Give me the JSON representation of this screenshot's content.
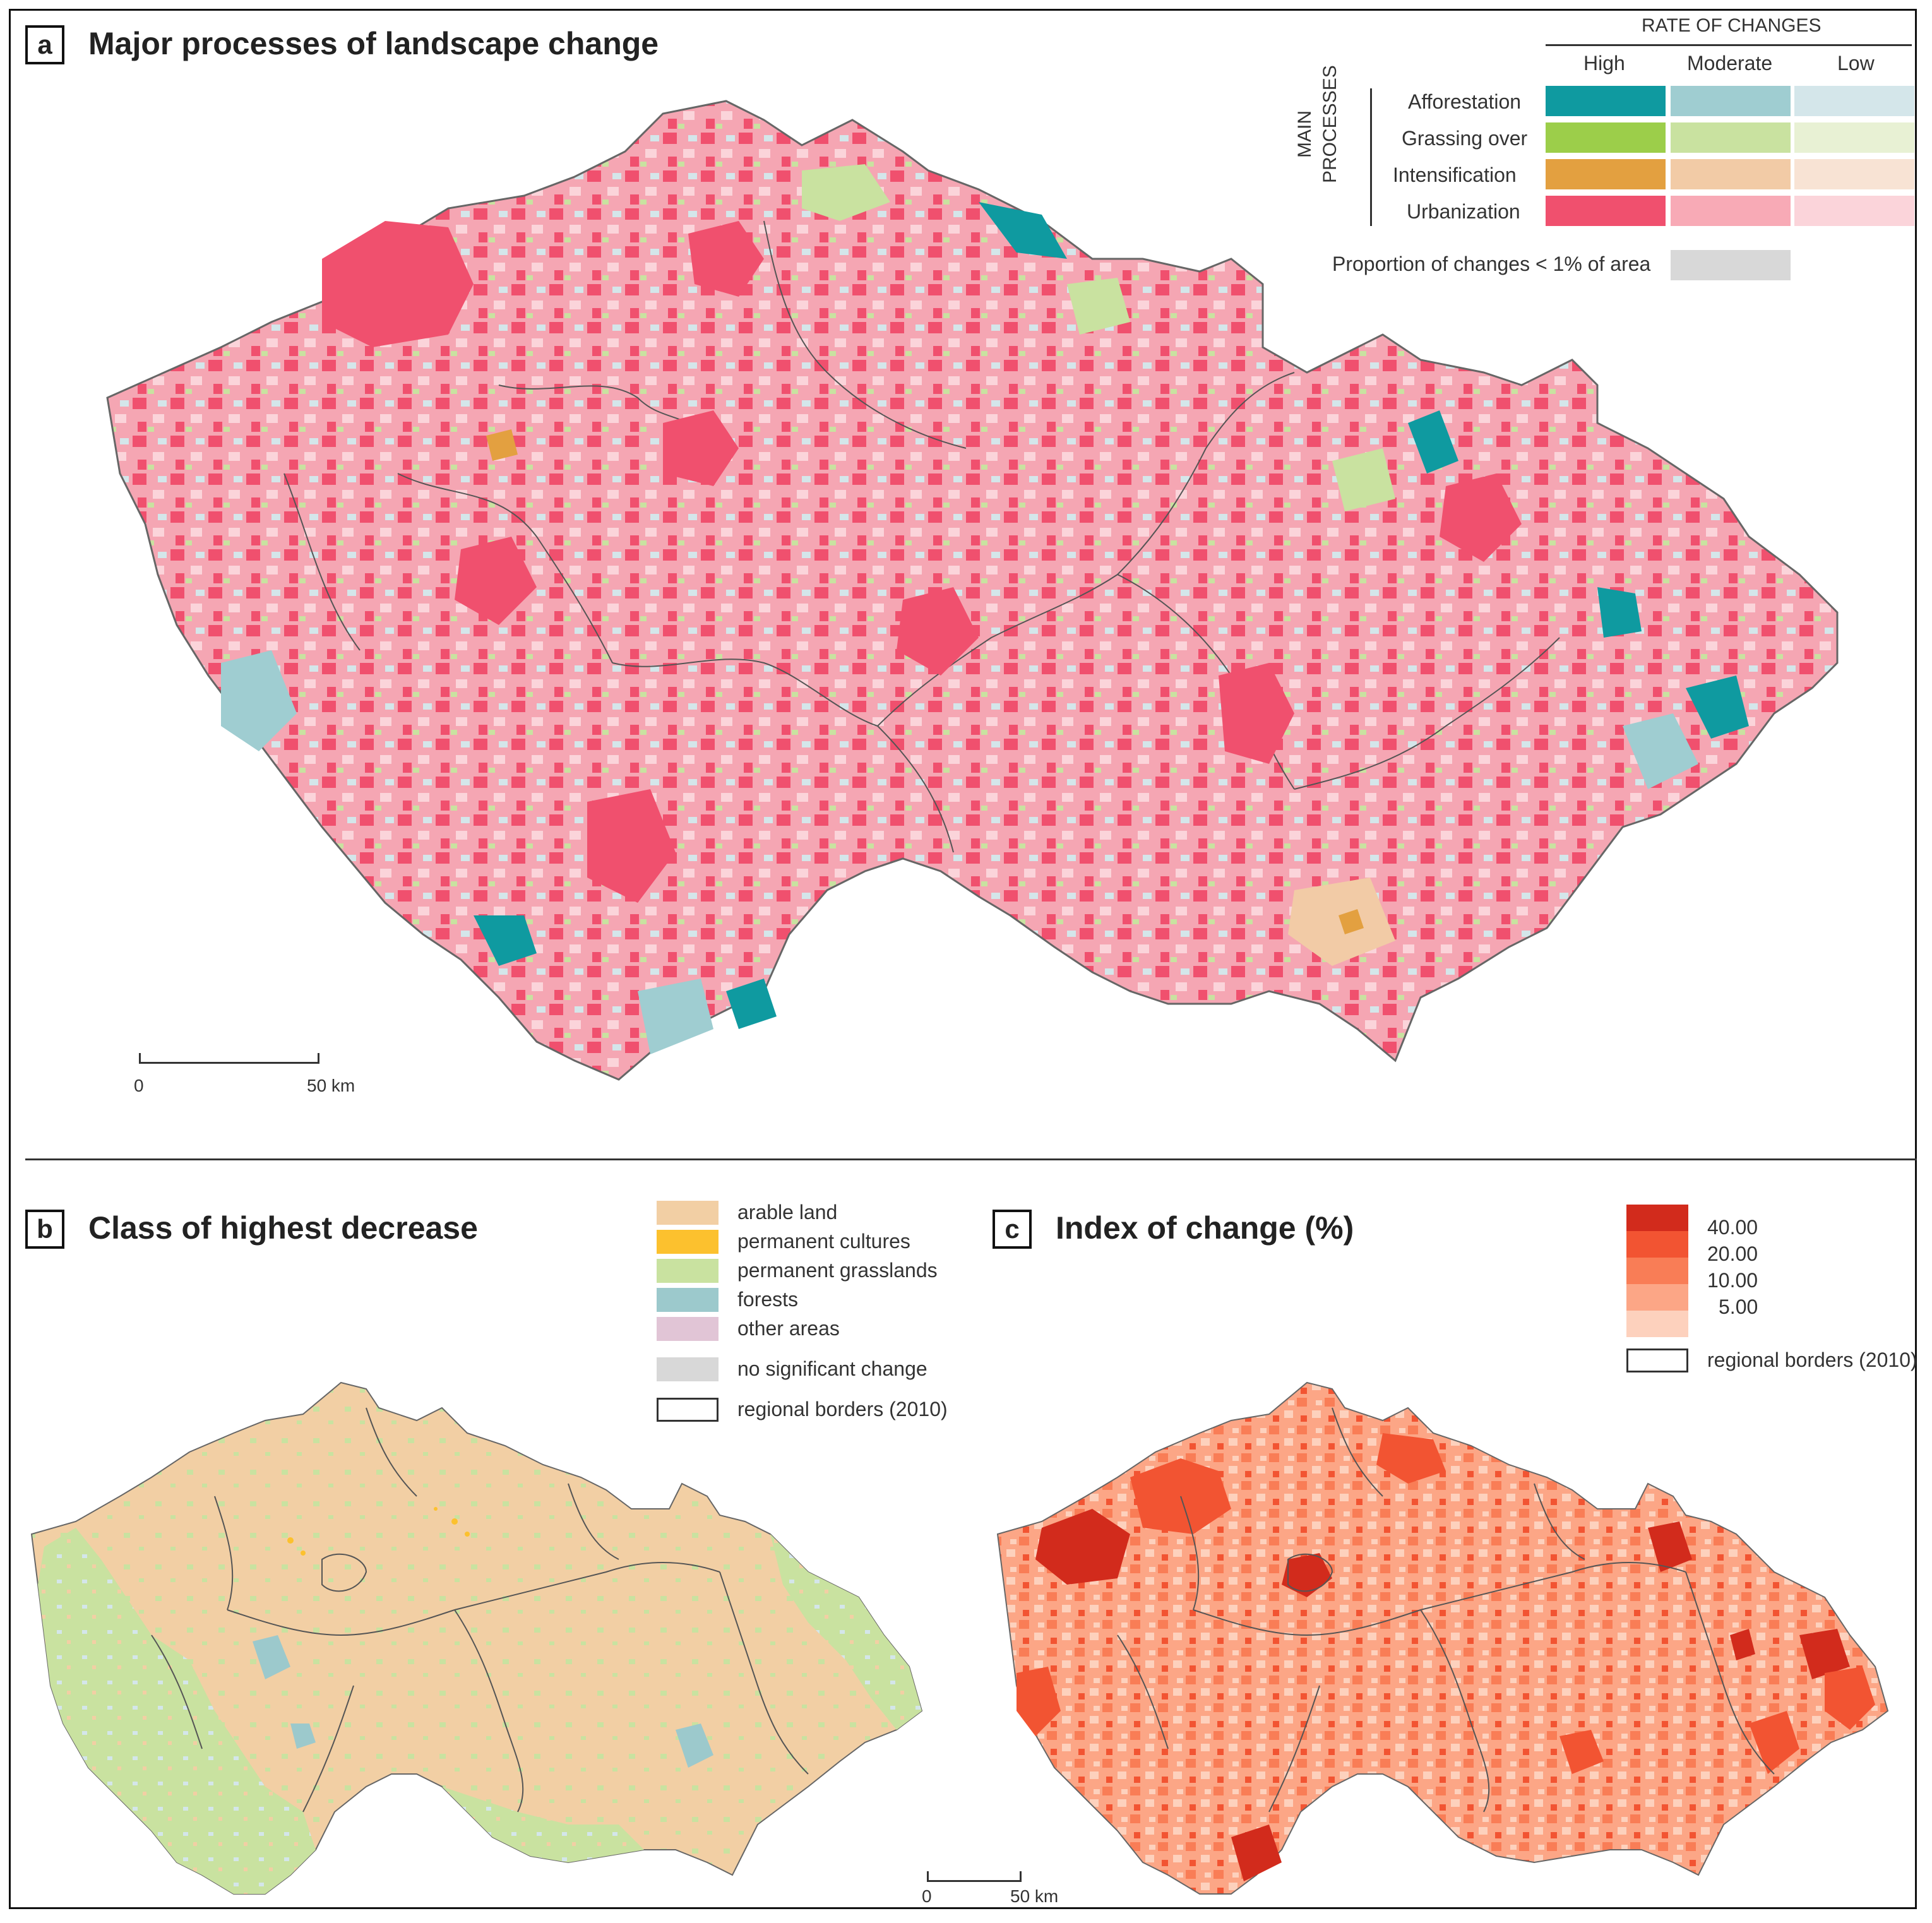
{
  "panel_a": {
    "letter": "a",
    "title": "Major processes of landscape change",
    "legend": {
      "heading": "RATE OF CHANGES",
      "rates": [
        "High",
        "Moderate",
        "Low"
      ],
      "group_label_1": "MAIN",
      "group_label_2": "PROCESSES",
      "processes": [
        {
          "name": "Afforestation",
          "colors": [
            "#0f9aa0",
            "#9fcdd1",
            "#d4e6ea"
          ]
        },
        {
          "name": "Grassing over",
          "colors": [
            "#9cce4a",
            "#c9e2a0",
            "#e8f1d4"
          ]
        },
        {
          "name": "Intensification",
          "colors": [
            "#e3a040",
            "#f2cba6",
            "#f8e3d4"
          ]
        },
        {
          "name": "Urbanization",
          "colors": [
            "#f0506e",
            "#f8aab6",
            "#fbd4da"
          ]
        }
      ],
      "small_change_label": "Proportion of changes < 1% of area",
      "small_change_color": "#d8d8d8"
    },
    "scalebar": {
      "zero": "0",
      "end": "50 km"
    }
  },
  "panel_b": {
    "letter": "b",
    "title": "Class of highest decrease",
    "legend": [
      {
        "label": "arable land",
        "color": "#f2cfa4"
      },
      {
        "label": "permanent cultures",
        "color": "#fcc12e"
      },
      {
        "label": "permanent grasslands",
        "color": "#c9e2a0"
      },
      {
        "label": "forests",
        "color": "#9cc9cc"
      },
      {
        "label": "other areas",
        "color": "#e1c5d6"
      },
      {
        "label": "no significant change",
        "color": "#d8d8d8"
      },
      {
        "label": "regional borders (2010)",
        "color": "#ffffff"
      }
    ]
  },
  "panel_c": {
    "letter": "c",
    "title": "Index of change (%)",
    "legend_values": [
      "40.00",
      "20.00",
      "10.00",
      "5.00"
    ],
    "ramp_colors": [
      "#d22b1c",
      "#f25432",
      "#f97d56",
      "#fca686",
      "#fdd1bd"
    ],
    "border_label": "regional borders (2010)"
  },
  "scalebar_bottom": {
    "zero": "0",
    "end": "50 km"
  }
}
